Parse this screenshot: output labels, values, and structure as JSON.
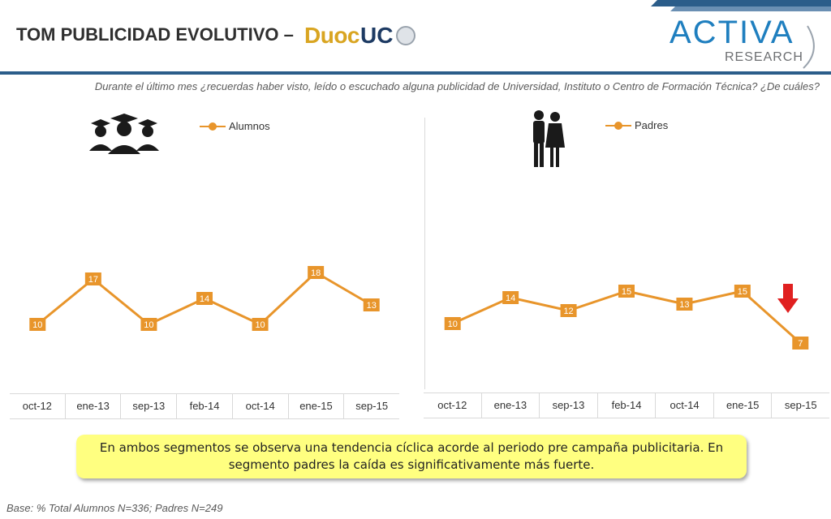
{
  "header": {
    "title": "TOM PUBLICIDAD EVOLUTIVO –",
    "logo_duoc": "Duoc",
    "logo_uc": "UC",
    "brand_name": "ACTIVA",
    "brand_sub": "RESEARCH",
    "question": "Durante el último mes ¿recuerdas haber visto, leído o escuchado alguna publicidad de Universidad, Instituto o Centro de Formación Técnica? ¿De cuáles?"
  },
  "colors": {
    "series": "#e8952b",
    "label_bg": "#e8952b",
    "accent_blue": "#2b5d8a",
    "alert_red": "#e02020",
    "callout_bg": "#ffff80"
  },
  "icons": {
    "left_panel": "students-graduation-icon",
    "right_panel": "parents-couple-icon",
    "alert": "red-down-arrow-icon"
  },
  "chart_data": [
    {
      "type": "line",
      "categories": [
        "oct-12",
        "ene-13",
        "sep-13",
        "feb-14",
        "oct-14",
        "ene-15",
        "sep-15"
      ],
      "series": [
        {
          "name": "Alumnos",
          "values": [
            10,
            17,
            10,
            14,
            10,
            18,
            13
          ]
        }
      ],
      "ylim": [
        0,
        30
      ],
      "grid": false,
      "legend": "top-center"
    },
    {
      "type": "line",
      "categories": [
        "oct-12",
        "ene-13",
        "sep-13",
        "feb-14",
        "oct-14",
        "ene-15",
        "sep-15"
      ],
      "series": [
        {
          "name": "Padres",
          "values": [
            10,
            14,
            12,
            15,
            13,
            15,
            7
          ]
        }
      ],
      "ylim": [
        0,
        30
      ],
      "grid": false,
      "legend": "top-center"
    }
  ],
  "callout": "En ambos segmentos se observa una tendencia cíclica acorde al periodo pre campaña publicitaria. En segmento padres la caída es significativamente más fuerte.",
  "base_note": "Base: % Total Alumnos  N=336;  Padres N=249"
}
